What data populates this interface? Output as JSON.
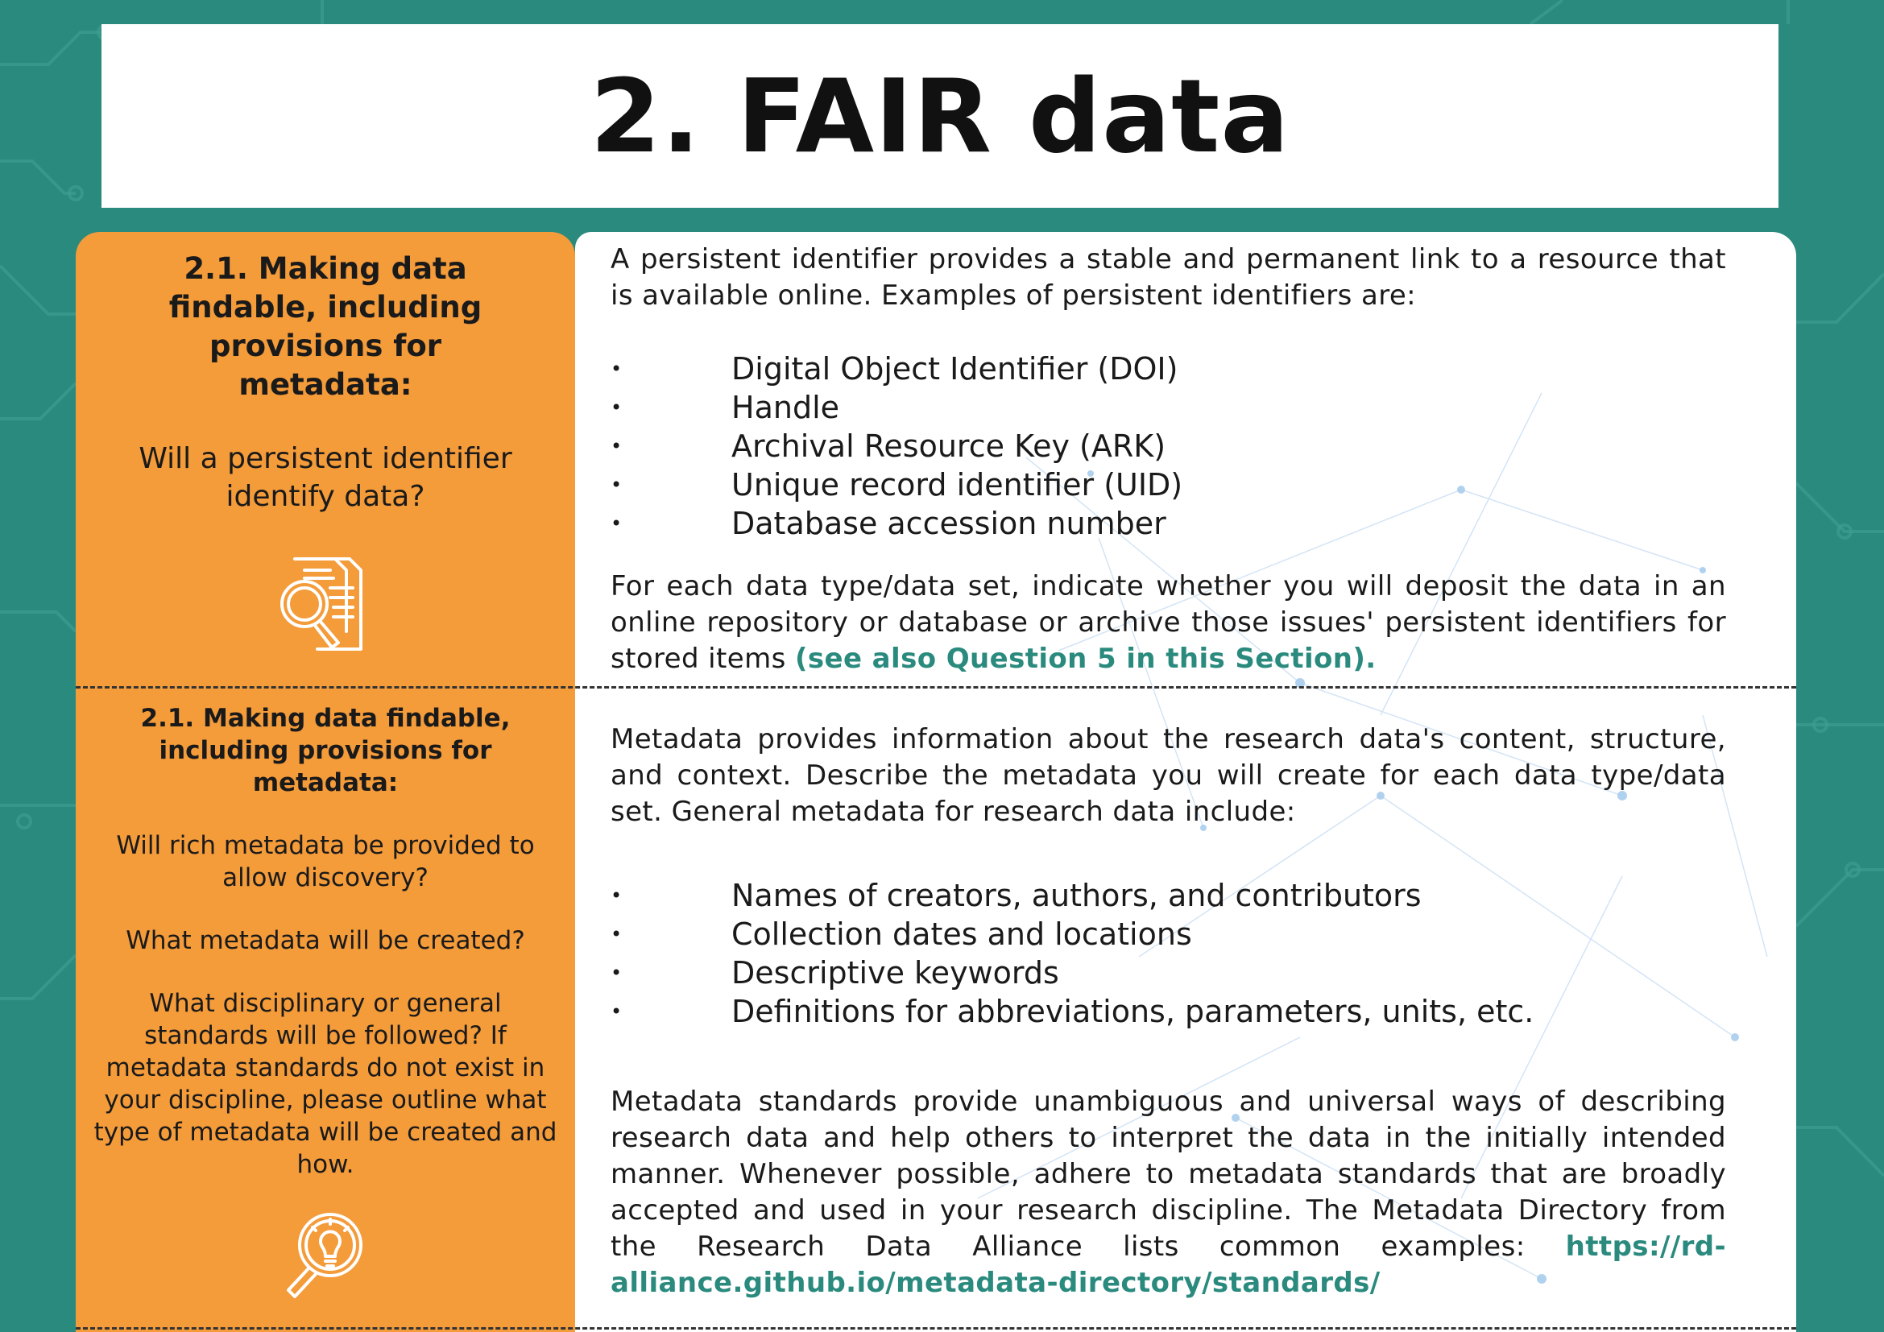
{
  "title": "2. FAIR data",
  "section1": {
    "heading": "2.1. Making data findable, including provisions for metadata:",
    "question": "Will a persistent identifier identify data?",
    "icon": "document-search-icon",
    "intro": "A persistent identifier provides a stable and permanent link to a resource that is available online. Examples of persistent identifiers are:",
    "bullets": [
      "Digital Object Identifier (DOI)",
      "Handle",
      "Archival Resource Key (ARK)",
      "Unique record identifier (UID)",
      "Database accession number"
    ],
    "closing": "For each data type/data set, indicate whether you will deposit the data in an online repository or database or archive those issues' persistent identifiers for stored items ",
    "closing_link": "(see also Question 5 in this Section)."
  },
  "section2": {
    "heading": "2.1. Making data findable, including provisions for metadata:",
    "q1": "Will rich metadata be provided to allow discovery?",
    "q2": "What metadata will be created?",
    "q3": "What disciplinary or general standards will be followed? If metadata standards do not exist in your discipline, please outline what type of metadata will be created and how.",
    "icon": "lightbulb-search-icon",
    "intro": "Metadata provides information about the research data's content, structure, and context. Describe the metadata you will create for each data type/data set. General metadata for research data include:",
    "bullets": [
      "Names of creators, authors, and contributors",
      "Collection dates and locations",
      "Descriptive keywords",
      "Definitions for abbreviations, parameters, units, etc."
    ],
    "closing": "Metadata standards provide unambiguous and universal ways of describing research data and help others to interpret the data in the initially intended manner. Whenever possible, adhere to metadata standards that are broadly accepted and used in your research discipline. The Metadata Directory from the Research Data Alliance lists common examples: ",
    "closing_link": "https://rd-alliance.github.io/metadata-directory/standards/"
  },
  "colors": {
    "teal": "#2a8a7e",
    "orange": "#f49b3a",
    "white": "#ffffff"
  }
}
